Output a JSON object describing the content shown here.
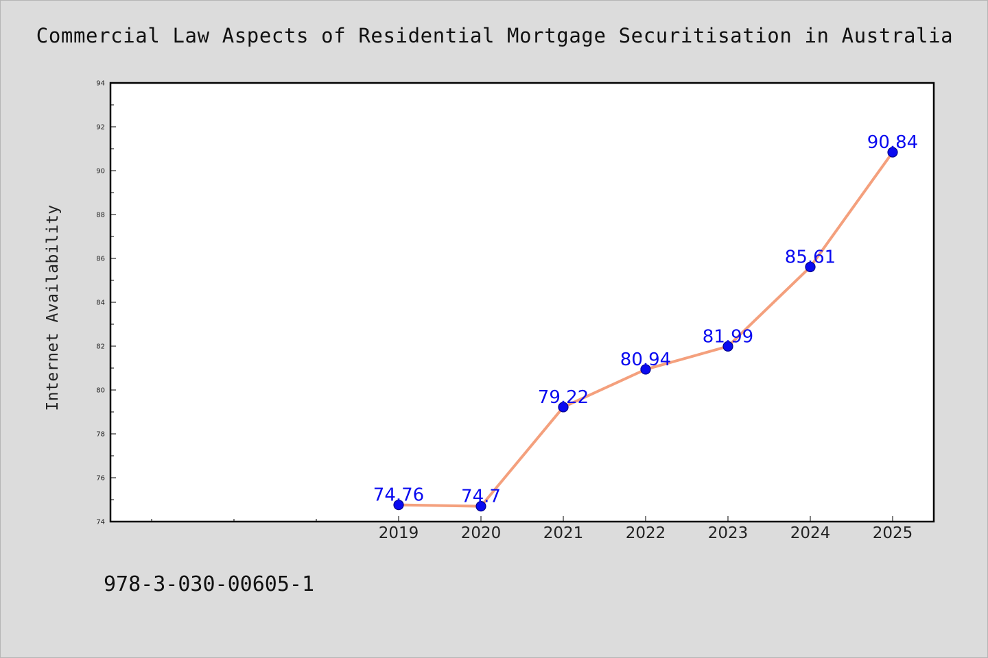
{
  "isbn": "978-3-030-00605-1",
  "chart_data": {
    "type": "line",
    "title": "Commercial Law Aspects of Residential Mortgage Securitisation in Australia",
    "xlabel": "",
    "ylabel": "Internet Availability",
    "x": [
      "2019",
      "2020",
      "2021",
      "2022",
      "2023",
      "2024",
      "2025"
    ],
    "series": [
      {
        "values": [
          74.76,
          74.7,
          79.22,
          80.94,
          81.99,
          85.61,
          90.84
        ]
      }
    ],
    "data_labels": [
      "74.76",
      "74.7",
      "79.22",
      "80.94",
      "81.99",
      "85.61",
      "90.84"
    ],
    "ylim": [
      74,
      94
    ],
    "yticks": [
      "74",
      "76",
      "78",
      "80",
      "82",
      "84",
      "86",
      "88",
      "90",
      "92",
      "94"
    ],
    "x_category_slots": 10,
    "grid": false,
    "legend": "none",
    "colors": {
      "line": "#f4a07d",
      "marker": "#0a0af0",
      "marker_edge": "#00008b",
      "data_label": "#0a0af0",
      "plot_background": "#ffffff",
      "figure_background": "#dcdcdc",
      "frame": "#000000"
    }
  }
}
